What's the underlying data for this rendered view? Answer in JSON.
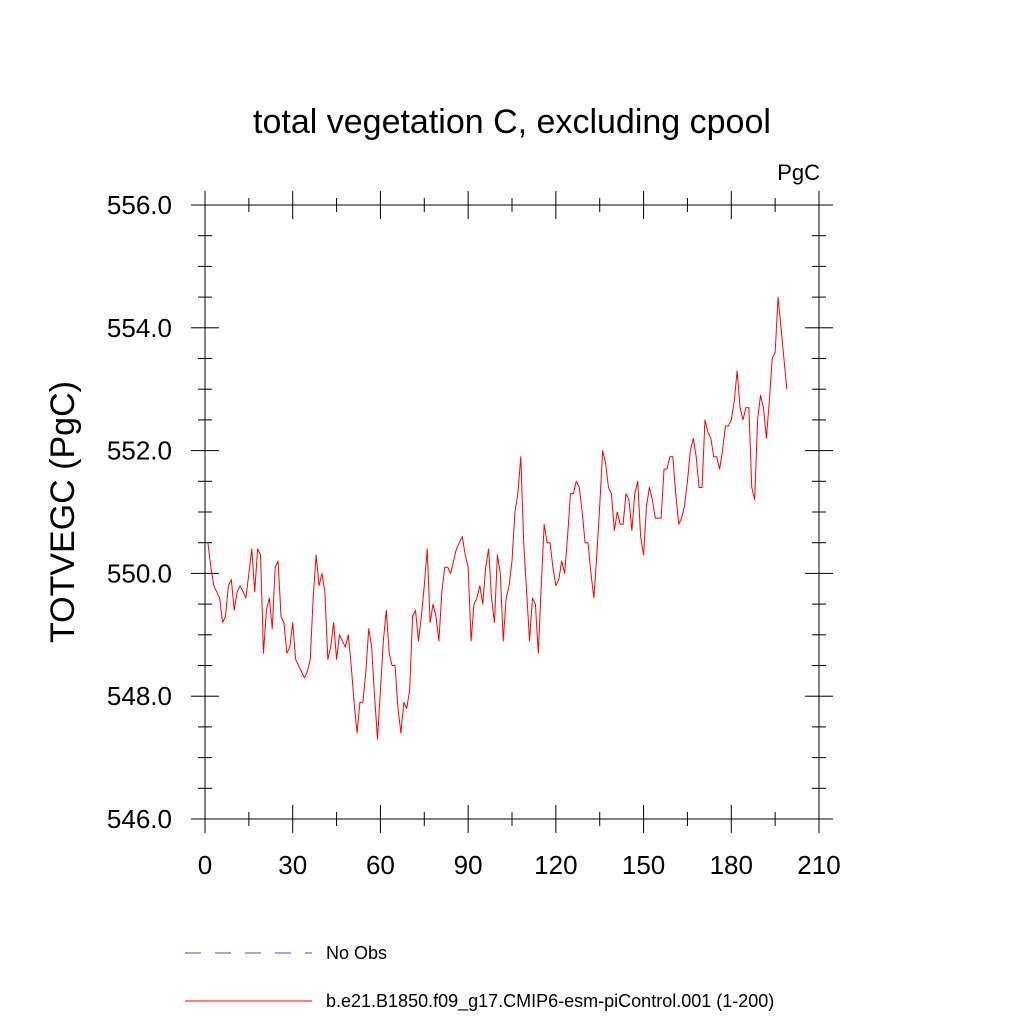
{
  "chart_data": {
    "type": "line",
    "title": "total vegetation C, excluding cpool",
    "units_label": "PgC",
    "xlabel": "",
    "ylabel": "TOTVEGC  (PgC)",
    "xlim": [
      0,
      210
    ],
    "ylim": [
      546.0,
      556.0
    ],
    "x_ticks": [
      0,
      30,
      60,
      90,
      120,
      150,
      180,
      210
    ],
    "x_tick_labels": [
      "0",
      "30",
      "60",
      "90",
      "120",
      "150",
      "180",
      "210"
    ],
    "y_ticks": [
      546.0,
      548.0,
      550.0,
      552.0,
      554.0,
      556.0
    ],
    "y_tick_labels": [
      "546.0",
      "548.0",
      "550.0",
      "552.0",
      "554.0",
      "556.0"
    ],
    "grid": false,
    "legend_position": "bottom-left, below plot",
    "series": [
      {
        "name": "b.e21.B1850.f09_g17.CMIP6-esm-piControl.001 (1-200)",
        "color": "#ff0000",
        "style": "solid",
        "x_start": 1,
        "x_step": 1,
        "values": [
          550.5,
          550.1,
          549.8,
          549.7,
          549.6,
          549.2,
          549.3,
          549.8,
          549.9,
          549.4,
          549.7,
          549.8,
          549.7,
          549.6,
          550.0,
          550.4,
          549.7,
          550.4,
          550.3,
          548.7,
          549.4,
          549.6,
          549.1,
          550.1,
          550.2,
          549.3,
          549.2,
          548.7,
          548.8,
          549.2,
          548.6,
          548.5,
          548.4,
          548.3,
          548.4,
          548.6,
          549.6,
          550.3,
          549.8,
          550.0,
          549.7,
          548.6,
          548.8,
          549.2,
          548.6,
          549.0,
          548.9,
          548.8,
          549.0,
          548.5,
          547.9,
          547.4,
          547.9,
          547.9,
          548.4,
          549.1,
          548.8,
          548.0,
          547.3,
          548.1,
          548.9,
          549.4,
          548.7,
          548.5,
          548.5,
          547.8,
          547.4,
          547.9,
          547.8,
          548.1,
          549.3,
          549.4,
          548.9,
          549.3,
          549.8,
          550.4,
          549.2,
          549.5,
          549.3,
          548.9,
          549.7,
          550.1,
          550.1,
          550.0,
          550.2,
          550.4,
          550.5,
          550.6,
          550.3,
          550.1,
          548.9,
          549.5,
          549.6,
          549.8,
          549.5,
          550.1,
          550.4,
          549.6,
          549.2,
          550.3,
          550.0,
          548.9,
          549.6,
          549.8,
          550.2,
          551.0,
          551.3,
          551.9,
          550.5,
          549.7,
          548.9,
          549.6,
          549.5,
          548.7,
          549.8,
          550.8,
          550.5,
          550.5,
          550.1,
          549.8,
          549.9,
          550.2,
          550.0,
          550.6,
          551.3,
          551.3,
          551.5,
          551.4,
          551.0,
          550.5,
          550.5,
          550.0,
          549.6,
          550.3,
          551.1,
          552.0,
          551.8,
          551.4,
          551.3,
          550.7,
          551.0,
          550.8,
          550.8,
          551.3,
          551.2,
          550.7,
          551.3,
          551.5,
          550.6,
          550.3,
          551.1,
          551.4,
          551.2,
          550.9,
          550.9,
          550.9,
          551.7,
          551.7,
          551.9,
          551.9,
          551.3,
          550.8,
          550.9,
          551.1,
          551.5,
          552.0,
          552.2,
          551.9,
          551.4,
          551.4,
          552.5,
          552.3,
          552.2,
          551.9,
          551.9,
          551.7,
          552.0,
          552.4,
          552.4,
          552.5,
          552.8,
          553.3,
          552.7,
          552.5,
          552.7,
          552.7,
          551.4,
          551.2,
          552.5,
          552.9,
          552.7,
          552.2,
          552.8,
          553.5,
          553.6,
          554.5,
          554.0,
          553.5,
          553.0
        ]
      },
      {
        "name": "No Obs",
        "color": "#4c4cb3",
        "style": "dashed",
        "values": []
      }
    ]
  }
}
